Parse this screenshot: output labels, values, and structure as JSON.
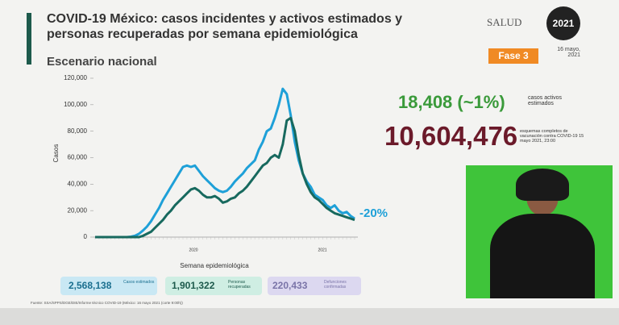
{
  "slide": {
    "title": "COVID-19 México: casos incidentes y activos estimados y personas recuperadas por semana epidemiológica",
    "subtitle": "Escenario nacional",
    "logo": "SALUD",
    "logo_year": "2021",
    "date": "16 mayo, 2021",
    "phase": "Fase 3",
    "active": "18,408 (~1%)",
    "active_note": "casos activos estimados",
    "vaccinated": "10,604,476",
    "vaccinated_note": "esquemas completos de vacunación contra COVID-19 15 mayo 2021, 23:00",
    "boxes": [
      {
        "value": "2,568,138",
        "label": "Casos estimados"
      },
      {
        "value": "1,901,322",
        "label": "Personas recuperadas"
      },
      {
        "value": "220,433",
        "label": "Defunciones confirmadas"
      }
    ],
    "source": "Fuente: SSA/SPPS/DGE/DIE/Informe técnico COVID-19 (México: 16 mayo 2021 (corte 9:00h))"
  },
  "chart_data": {
    "type": "line",
    "ylabel": "Casos",
    "xlabel": "Semana epidemiológica",
    "annotation": "-20%",
    "x_group_labels": [
      "2020",
      "2021"
    ],
    "categories": [
      null,
      null,
      null,
      null,
      null,
      null,
      null,
      null,
      null,
      null,
      null,
      null,
      null,
      null,
      null,
      null,
      null,
      null,
      null,
      null,
      null,
      null,
      null,
      null,
      null,
      null,
      null,
      null,
      null,
      null,
      null,
      null,
      null,
      null,
      null,
      null,
      null,
      null,
      null,
      null,
      null,
      null,
      null,
      null,
      null,
      null,
      null,
      null,
      null,
      null,
      null,
      null,
      null,
      null,
      null,
      null,
      null,
      null,
      null,
      null,
      null,
      null,
      null,
      null,
      null,
      null
    ],
    "series": [
      {
        "color": "#1ea0d8",
        "values": [
          0,
          0,
          0,
          0,
          0,
          0,
          0,
          0,
          0,
          300,
          1000,
          2500,
          5000,
          8000,
          12000,
          17000,
          22000,
          28000,
          33000,
          38000,
          43000,
          48000,
          53000,
          54000,
          53000,
          54000,
          50000,
          46000,
          43000,
          40000,
          37000,
          35000,
          34000,
          35000,
          38000,
          42000,
          45000,
          48000,
          52000,
          55000,
          58000,
          66000,
          72000,
          80000,
          82000,
          90000,
          100000,
          112000,
          108000,
          92000,
          72000,
          58000,
          48000,
          42000,
          38000,
          32000,
          30000,
          28000,
          24000,
          22000,
          24000,
          20000,
          18000,
          19000,
          16000,
          14000
        ]
      },
      {
        "color": "#17695e",
        "values": [
          0,
          0,
          0,
          0,
          0,
          0,
          0,
          0,
          0,
          0,
          0,
          0,
          1000,
          2500,
          4000,
          7000,
          10000,
          13000,
          17000,
          20000,
          24000,
          27000,
          30000,
          33000,
          36000,
          37000,
          35000,
          32000,
          30000,
          30000,
          31000,
          29000,
          26000,
          27000,
          29000,
          30000,
          33000,
          35000,
          38000,
          42000,
          46000,
          50000,
          54000,
          56000,
          60000,
          62000,
          60000,
          70000,
          88000,
          90000,
          80000,
          62000,
          48000,
          40000,
          34000,
          30000,
          28000,
          25000,
          22000,
          20000,
          18000,
          17000,
          16000,
          15000,
          14000,
          13000
        ]
      }
    ],
    "ylim": [
      0,
      120000
    ],
    "yticks": [
      0,
      {
        "value": 20000,
        "label": "20,000"
      },
      {
        "value": 40000,
        "label": "40,000"
      },
      {
        "value": 60000,
        "label": "60,000"
      },
      {
        "value": 80000,
        "label": "80,000"
      },
      {
        "value": 100000,
        "label": "100,000"
      },
      {
        "value": 120000,
        "label": "120,000"
      }
    ],
    "grid": false
  }
}
